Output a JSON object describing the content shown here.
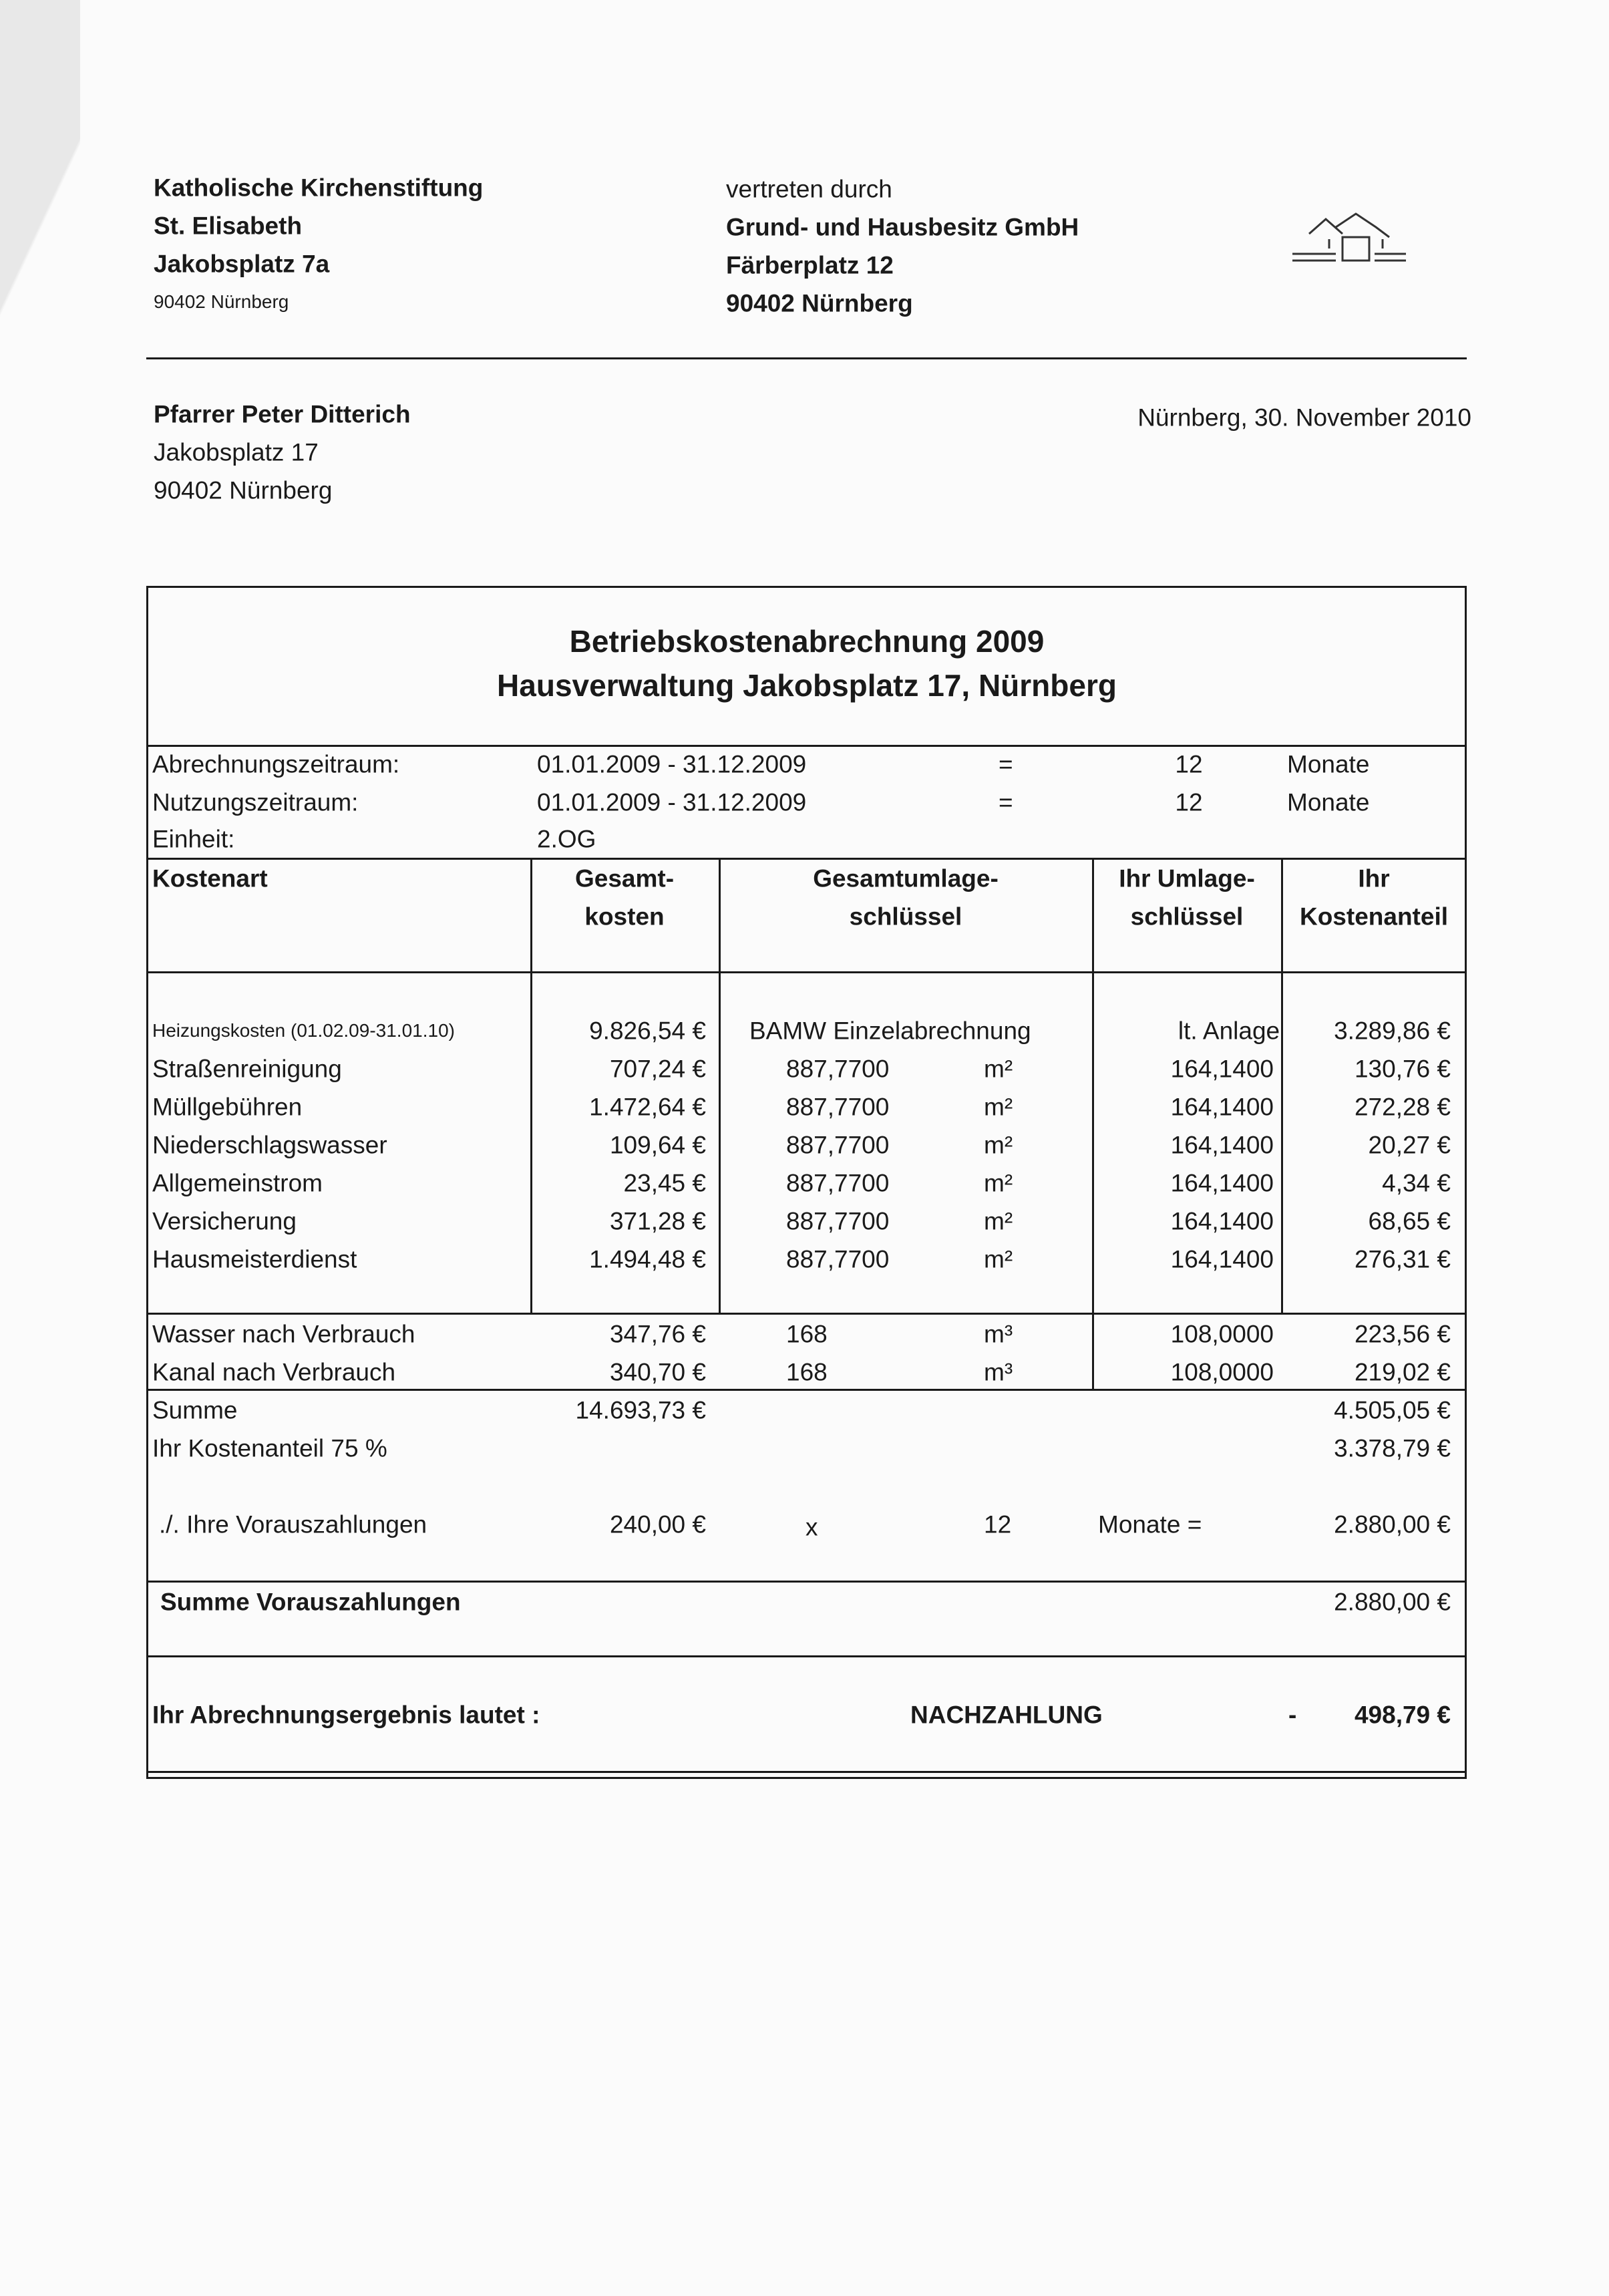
{
  "sender": {
    "name": "Katholische Kirchenstiftung",
    "parish": "St. Elisabeth",
    "street": "Jakobsplatz 7a",
    "city": "90402 Nürnberg"
  },
  "agent": {
    "intro": "vertreten durch",
    "company": "Grund- und Hausbesitz GmbH",
    "street": "Färberplatz 12",
    "city": "90402 Nürnberg",
    "logo": "house-logo"
  },
  "recipient": {
    "name": "Pfarrer Peter Ditterich",
    "street": "Jakobsplatz 17",
    "city": "90402 Nürnberg"
  },
  "date": "Nürnberg, 30. November 2010",
  "statement": {
    "title": "Betriebskostenabrechnung 2009",
    "subtitle": "Hausverwaltung Jakobsplatz 17, Nürnberg"
  },
  "period": [
    {
      "label": "Abrechnungszeitraum:",
      "range": "01.01.2009 - 31.12.2009",
      "eq": "=",
      "months": "12",
      "unit": "Monate"
    },
    {
      "label": "Nutzungszeitraum:",
      "range": "01.01.2009 - 31.12.2009",
      "eq": "=",
      "months": "12",
      "unit": "Monate"
    }
  ],
  "unit": {
    "label": "Einheit:",
    "value": "2.OG"
  },
  "headers": {
    "type": "Kostenart",
    "total": [
      "Gesamt-",
      "kosten"
    ],
    "key_total": [
      "Gesamtumlage-",
      "schlüssel"
    ],
    "your_key": [
      "Ihr Umlage-",
      "schlüssel"
    ],
    "share": [
      "Ihr",
      "Kostenanteil"
    ]
  },
  "rows": [
    {
      "type": "Heizungskosten (01.02.09-31.01.10)",
      "total": "9.826,54 €",
      "key_total": "BAMW Einzelabrechnung",
      "key_unit": "",
      "your_key": "lt. Anlage",
      "share": "3.289,86 €"
    },
    {
      "type": "Straßenreinigung",
      "total": "707,24 €",
      "key_total": "887,7700",
      "key_unit": "m²",
      "your_key": "164,1400",
      "share": "130,76 €"
    },
    {
      "type": "Müllgebühren",
      "total": "1.472,64 €",
      "key_total": "887,7700",
      "key_unit": "m²",
      "your_key": "164,1400",
      "share": "272,28 €"
    },
    {
      "type": "Niederschlagswasser",
      "total": "109,64 €",
      "key_total": "887,7700",
      "key_unit": "m²",
      "your_key": "164,1400",
      "share": "20,27 €"
    },
    {
      "type": "Allgemeinstrom",
      "total": "23,45 €",
      "key_total": "887,7700",
      "key_unit": "m²",
      "your_key": "164,1400",
      "share": "4,34 €"
    },
    {
      "type": "Versicherung",
      "total": "371,28 €",
      "key_total": "887,7700",
      "key_unit": "m²",
      "your_key": "164,1400",
      "share": "68,65 €"
    },
    {
      "type": "Hausmeisterdienst",
      "total": "1.494,48 €",
      "key_total": "887,7700",
      "key_unit": "m²",
      "your_key": "164,1400",
      "share": "276,31 €"
    }
  ],
  "consumption": [
    {
      "type": "Wasser nach Verbrauch",
      "total": "347,76 €",
      "key_total": "168",
      "key_unit": "m³",
      "your_key": "108,0000",
      "share": "223,56 €"
    },
    {
      "type": "Kanal nach Verbrauch",
      "total": "340,70 €",
      "key_total": "168",
      "key_unit": "m³",
      "your_key": "108,0000",
      "share": "219,02 €"
    }
  ],
  "summary": {
    "sum_label": "Summe",
    "sum_total": "14.693,73 €",
    "sum_share": "4.505,05 €",
    "share_label": "Ihr Kostenanteil 75 %",
    "share_value": "3.378,79 €",
    "prepay_label": "./. Ihre Vorauszahlungen",
    "prepay_amount": "240,00 €",
    "prepay_x": "x",
    "prepay_months": "12",
    "prepay_months_label": "Monate  =",
    "prepay_total": "2.880,00 €",
    "prepay_sum_label": "Summe Vorauszahlungen",
    "prepay_sum_value": "2.880,00 €",
    "result_label": "Ihr Abrechnungsergebnis lautet :",
    "result_type": "NACHZAHLUNG",
    "result_sign": "-",
    "result_value": "498,79 €"
  }
}
